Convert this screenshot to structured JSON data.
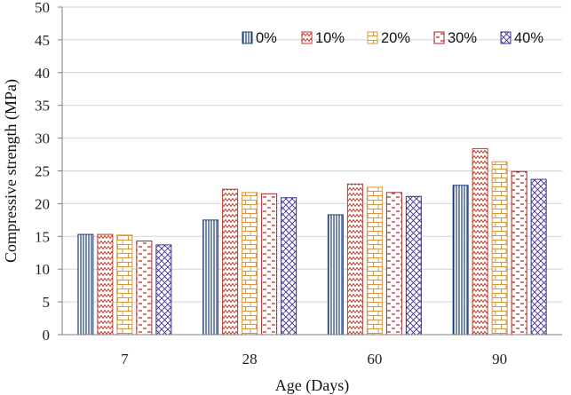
{
  "chart_data": {
    "type": "bar",
    "categories": [
      "7",
      "28",
      "60",
      "90"
    ],
    "series": [
      {
        "name": "0%",
        "values": [
          15.3,
          17.5,
          18.3,
          22.8
        ],
        "color": "#1f3f7a",
        "pattern": "vertical-lines"
      },
      {
        "name": "10%",
        "values": [
          15.3,
          22.2,
          23.0,
          28.4
        ],
        "color": "#c0392b",
        "pattern": "zigzag"
      },
      {
        "name": "20%",
        "values": [
          15.2,
          21.7,
          22.5,
          26.4
        ],
        "color": "#d9953a",
        "pattern": "brick"
      },
      {
        "name": "30%",
        "values": [
          14.3,
          21.5,
          21.7,
          24.9
        ],
        "color": "#b22222",
        "pattern": "dashes"
      },
      {
        "name": "40%",
        "values": [
          13.7,
          20.9,
          21.1,
          23.7
        ],
        "color": "#3b2e8c",
        "pattern": "diagonal-cross"
      }
    ],
    "xlabel": "Age (Days)",
    "ylabel": "Compressive strength (MPa)",
    "ylim": [
      0,
      50
    ],
    "yticks": [
      "0",
      "5",
      "10",
      "15",
      "20",
      "25",
      "30",
      "35",
      "40",
      "45",
      "50"
    ],
    "grid": true,
    "legend_position": "top-right"
  }
}
